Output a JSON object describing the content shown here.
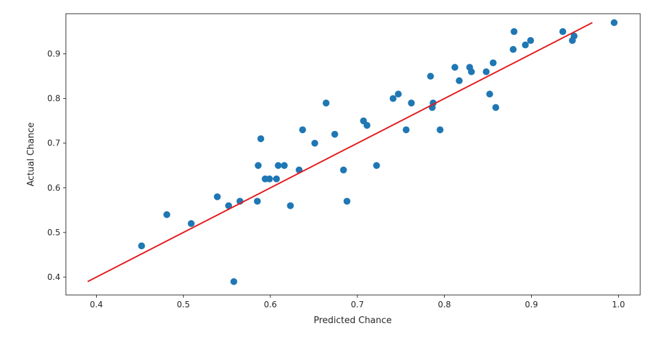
{
  "chart_data": {
    "type": "scatter",
    "xlabel": "Predicted Chance",
    "ylabel": "Actual Chance",
    "xlim": [
      0.365,
      1.025
    ],
    "ylim": [
      0.36,
      0.99
    ],
    "x_ticks": [
      "0.4",
      "0.5",
      "0.6",
      "0.7",
      "0.8",
      "0.9",
      "1.0"
    ],
    "y_ticks": [
      "0.4",
      "0.5",
      "0.6",
      "0.7",
      "0.8",
      "0.9"
    ],
    "grid": false,
    "series": [
      {
        "type": "scatter",
        "color": "#1f77b4",
        "points": [
          [
            0.452,
            0.47
          ],
          [
            0.481,
            0.54
          ],
          [
            0.509,
            0.52
          ],
          [
            0.539,
            0.58
          ],
          [
            0.552,
            0.56
          ],
          [
            0.558,
            0.39
          ],
          [
            0.565,
            0.57
          ],
          [
            0.585,
            0.57
          ],
          [
            0.586,
            0.65
          ],
          [
            0.589,
            0.71
          ],
          [
            0.594,
            0.62
          ],
          [
            0.599,
            0.62
          ],
          [
            0.607,
            0.62
          ],
          [
            0.609,
            0.65
          ],
          [
            0.616,
            0.65
          ],
          [
            0.623,
            0.56
          ],
          [
            0.633,
            0.64
          ],
          [
            0.637,
            0.73
          ],
          [
            0.651,
            0.7
          ],
          [
            0.664,
            0.79
          ],
          [
            0.674,
            0.72
          ],
          [
            0.684,
            0.64
          ],
          [
            0.688,
            0.57
          ],
          [
            0.707,
            0.75
          ],
          [
            0.711,
            0.74
          ],
          [
            0.722,
            0.65
          ],
          [
            0.741,
            0.8
          ],
          [
            0.747,
            0.81
          ],
          [
            0.756,
            0.73
          ],
          [
            0.762,
            0.79
          ],
          [
            0.784,
            0.85
          ],
          [
            0.786,
            0.78
          ],
          [
            0.787,
            0.79
          ],
          [
            0.795,
            0.73
          ],
          [
            0.812,
            0.87
          ],
          [
            0.817,
            0.84
          ],
          [
            0.829,
            0.87
          ],
          [
            0.831,
            0.86
          ],
          [
            0.848,
            0.86
          ],
          [
            0.852,
            0.81
          ],
          [
            0.856,
            0.88
          ],
          [
            0.859,
            0.78
          ],
          [
            0.879,
            0.91
          ],
          [
            0.88,
            0.95
          ],
          [
            0.893,
            0.92
          ],
          [
            0.899,
            0.93
          ],
          [
            0.936,
            0.95
          ],
          [
            0.947,
            0.93
          ],
          [
            0.949,
            0.94
          ],
          [
            0.995,
            0.97
          ]
        ]
      },
      {
        "type": "line",
        "color": "#e31a1c",
        "x": [
          0.39,
          0.97
        ],
        "y": [
          0.39,
          0.97
        ]
      }
    ]
  }
}
